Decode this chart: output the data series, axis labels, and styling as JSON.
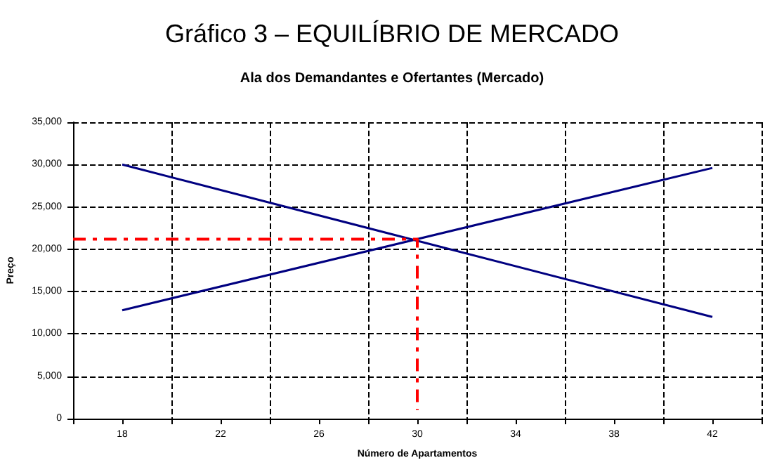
{
  "chart_data": {
    "type": "line",
    "title": "Gráfico 3 – EQUILÍBRIO DE MERCADO",
    "subtitle": "Ala dos Demandantes e Ofertantes (Mercado)",
    "xlabel": "Número de Apartamentos",
    "ylabel": "Preço",
    "series": [
      {
        "x": [
          18,
          42
        ],
        "values": [
          30000,
          12000
        ],
        "color": "#000080"
      },
      {
        "x": [
          18,
          42
        ],
        "values": [
          12800,
          29600
        ],
        "color": "#000080"
      },
      {
        "x": [
          16,
          30,
          30
        ],
        "values": [
          21200,
          21200,
          1000
        ],
        "color": "#ff0000",
        "line_style": "dashed"
      }
    ],
    "xlim": [
      16,
      44
    ],
    "xticks": [
      {
        "value": 16,
        "label": null
      },
      {
        "value": 18,
        "label": "18"
      },
      {
        "value": 20,
        "label": null
      },
      {
        "value": 22,
        "label": "22"
      },
      {
        "value": 24,
        "label": null
      },
      {
        "value": 26,
        "label": "26"
      },
      {
        "value": 28,
        "label": null
      },
      {
        "value": 30,
        "label": "30"
      },
      {
        "value": 32,
        "label": null
      },
      {
        "value": 34,
        "label": "34"
      },
      {
        "value": 36,
        "label": null
      },
      {
        "value": 38,
        "label": "38"
      },
      {
        "value": 40,
        "label": null
      },
      {
        "value": 42,
        "label": "42"
      },
      {
        "value": 44,
        "label": null
      }
    ],
    "ylim": [
      0,
      35000
    ],
    "yticks": [
      {
        "value": 0,
        "label": "0"
      },
      {
        "value": 5000,
        "label": "5,000"
      },
      {
        "value": 10000,
        "label": "10,000"
      },
      {
        "value": 15000,
        "label": "15,000"
      },
      {
        "value": 20000,
        "label": "20,000"
      },
      {
        "value": 25000,
        "label": "25,000"
      },
      {
        "value": 30000,
        "label": "30,000"
      },
      {
        "value": 35000,
        "label": "35,000"
      }
    ],
    "grid": true,
    "marker": "none",
    "line_style": "solid"
  }
}
